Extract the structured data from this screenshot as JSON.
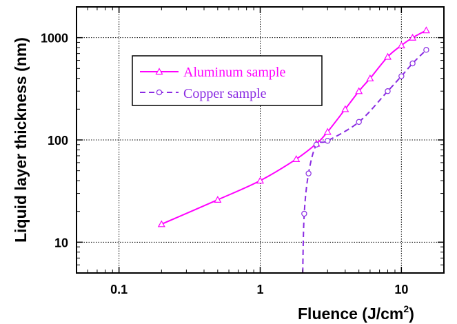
{
  "chart_data": {
    "type": "line",
    "xscale": "log",
    "yscale": "log",
    "xlim": [
      0.05,
      20
    ],
    "ylim": [
      5,
      2000
    ],
    "grid": true,
    "legend_position": "top-left",
    "xlabel": "Fluence (J/cm",
    "xlabel_sup": "2",
    "xlabel_close": ")",
    "ylabel": "Liquid layer thickness (nm)",
    "xticks": [
      {
        "value": 0.1,
        "label": "0.1"
      },
      {
        "value": 1,
        "label": "1"
      },
      {
        "value": 10,
        "label": "10"
      }
    ],
    "yticks": [
      {
        "value": 10,
        "label": "10"
      },
      {
        "value": 100,
        "label": "100"
      },
      {
        "value": 1000,
        "label": "1000"
      }
    ],
    "series": [
      {
        "name": "Aluminum sample",
        "color": "#ff00ff",
        "marker": "triangle",
        "line_style": "solid",
        "x": [
          0.2,
          0.5,
          1.0,
          1.8,
          2.5,
          3.0,
          4.0,
          5.0,
          6.0,
          8.0,
          10.0,
          12.0,
          15.0
        ],
        "y": [
          15,
          26,
          40,
          65,
          92,
          120,
          200,
          300,
          400,
          650,
          840,
          1000,
          1180
        ]
      },
      {
        "name": "Copper sample",
        "color": "#8a2be2",
        "marker": "circle",
        "line_style": "dashed",
        "x": [
          2.0,
          2.05,
          2.2,
          2.5,
          3.0,
          5.0,
          8.0,
          10.0,
          12.0,
          15.0
        ],
        "y": [
          5,
          19,
          47,
          90,
          98,
          150,
          300,
          420,
          560,
          760
        ]
      }
    ]
  }
}
